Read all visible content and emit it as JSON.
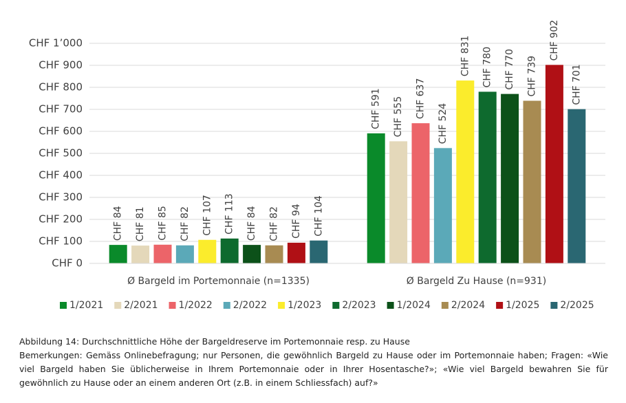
{
  "chart_data": {
    "type": "bar",
    "categories": [
      "Ø Bargeld im Portemonnaie (n=1335)",
      "Ø Bargeld Zu Hause (n=931)"
    ],
    "series": [
      {
        "name": "1/2021",
        "color": "#0a8a2a",
        "values": [
          84,
          591
        ],
        "value_labels": [
          "CHF 84",
          "CHF 591"
        ]
      },
      {
        "name": "2/2021",
        "color": "#e4d8ba",
        "values": [
          81,
          555
        ],
        "value_labels": [
          "CHF 81",
          "CHF 555"
        ]
      },
      {
        "name": "1/2022",
        "color": "#ec6469",
        "values": [
          85,
          637
        ],
        "value_labels": [
          "CHF 85",
          "CHF 637"
        ]
      },
      {
        "name": "2/2022",
        "color": "#5ba9b8",
        "values": [
          82,
          524
        ],
        "value_labels": [
          "CHF 82",
          "CHF 524"
        ]
      },
      {
        "name": "1/2023",
        "color": "#fbec2c",
        "values": [
          107,
          831
        ],
        "value_labels": [
          "CHF 107",
          "CHF 831"
        ]
      },
      {
        "name": "2/2023",
        "color": "#0e6a2e",
        "values": [
          113,
          780
        ],
        "value_labels": [
          "CHF 113",
          "CHF 780"
        ]
      },
      {
        "name": "1/2024",
        "color": "#0c5119",
        "values": [
          84,
          770
        ],
        "value_labels": [
          "CHF 84",
          "CHF 770"
        ]
      },
      {
        "name": "2/2024",
        "color": "#a88b52",
        "values": [
          82,
          739
        ],
        "value_labels": [
          "CHF 82",
          "CHF 739"
        ]
      },
      {
        "name": "1/2025",
        "color": "#b01015",
        "values": [
          94,
          902
        ],
        "value_labels": [
          "CHF 94",
          "CHF 902"
        ]
      },
      {
        "name": "2/2025",
        "color": "#2a6772",
        "values": [
          104,
          701
        ],
        "value_labels": [
          "CHF 104",
          "CHF 701"
        ]
      }
    ],
    "ylim": [
      0,
      1000
    ],
    "yticks": [
      {
        "value": 0,
        "label": "CHF 0"
      },
      {
        "value": 100,
        "label": "CHF 100"
      },
      {
        "value": 200,
        "label": "CHF 200"
      },
      {
        "value": 300,
        "label": "CHF 300"
      },
      {
        "value": 400,
        "label": "CHF 400"
      },
      {
        "value": 500,
        "label": "CHF 500"
      },
      {
        "value": 600,
        "label": "CHF 600"
      },
      {
        "value": 700,
        "label": "CHF 700"
      },
      {
        "value": 800,
        "label": "CHF 800"
      },
      {
        "value": 900,
        "label": "CHF 900"
      },
      {
        "value": 1000,
        "label": "CHF 1’000"
      }
    ],
    "grid": true,
    "legend": "bottom",
    "caption": "Abbildung 14: Durchschnittliche Höhe der Bargeldreserve im Portemonnaie resp. zu Hause",
    "notes": "Bemerkungen: Gemäss Onlinebefragung; nur Personen, die gewöhnlich Bargeld zu Hause oder im Portemonnaie haben; Fragen: «Wie viel Bargeld haben Sie üblicherweise in Ihrem Portemonnaie oder in Ihrer Hosentasche?»; «Wie viel Bargeld bewahren Sie für gewöhnlich zu Hause oder an einem anderen Ort (z.B. in einem Schliessfach) auf?»"
  }
}
